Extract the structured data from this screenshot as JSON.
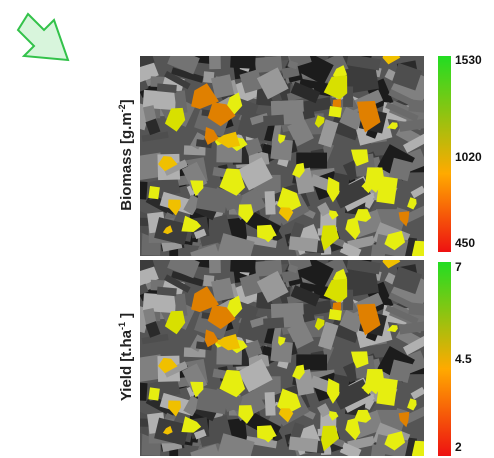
{
  "panels": [
    {
      "id": "biomass",
      "label_main": "Biomass  [g.m",
      "label_sup": "-2",
      "label_end": "]",
      "scale_max": "1530",
      "scale_mid": "1020",
      "scale_min": "450",
      "colors": {
        "high": "#22dd22",
        "mid": "#ffaa00",
        "low": "#ee1111"
      }
    },
    {
      "id": "yield",
      "label_main": "Yield [t.ha",
      "label_sup": "-1",
      "label_end": " ]",
      "scale_max": "7",
      "scale_mid": "4.5",
      "scale_min": "2",
      "colors": {
        "high": "#22dd22",
        "mid": "#ffaa00",
        "low": "#ee1111"
      }
    }
  ],
  "field_highlight_color": "#e6ee10",
  "arrow_color": "#33c24a"
}
